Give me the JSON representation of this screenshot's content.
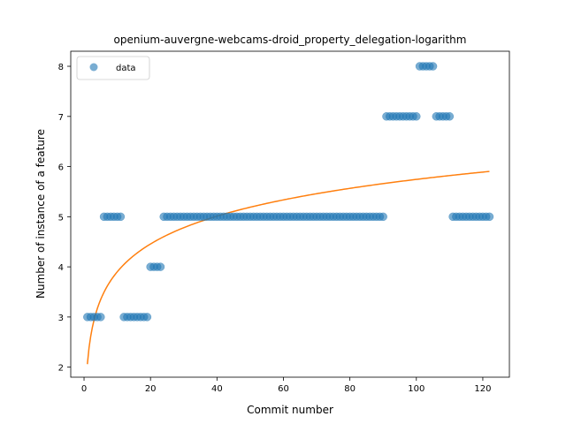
{
  "chart_data": {
    "type": "scatter",
    "title": "openium-auvergne-webcams-droid_property_delegation-logarithm",
    "xlabel": "Commit number",
    "ylabel": "Number of instance of a feature",
    "xlim": [
      -4,
      128
    ],
    "ylim": [
      1.8,
      8.3
    ],
    "xticks": [
      0,
      20,
      40,
      60,
      80,
      100,
      120
    ],
    "yticks": [
      2,
      3,
      4,
      5,
      6,
      7,
      8
    ],
    "grid": false,
    "legend": {
      "position": "top-left",
      "entries": [
        "data"
      ]
    },
    "colors": {
      "data": "#1f77b4",
      "fit": "#ff7f0e"
    },
    "series": [
      {
        "name": "data",
        "kind": "scatter",
        "points": [
          {
            "x": 1,
            "y": 3
          },
          {
            "x": 2,
            "y": 3
          },
          {
            "x": 3,
            "y": 3
          },
          {
            "x": 4,
            "y": 3
          },
          {
            "x": 5,
            "y": 3
          },
          {
            "x": 6,
            "y": 5
          },
          {
            "x": 7,
            "y": 5
          },
          {
            "x": 8,
            "y": 5
          },
          {
            "x": 9,
            "y": 5
          },
          {
            "x": 10,
            "y": 5
          },
          {
            "x": 11,
            "y": 5
          },
          {
            "x": 12,
            "y": 3
          },
          {
            "x": 13,
            "y": 3
          },
          {
            "x": 14,
            "y": 3
          },
          {
            "x": 15,
            "y": 3
          },
          {
            "x": 16,
            "y": 3
          },
          {
            "x": 17,
            "y": 3
          },
          {
            "x": 18,
            "y": 3
          },
          {
            "x": 19,
            "y": 3
          },
          {
            "x": 20,
            "y": 4
          },
          {
            "x": 21,
            "y": 4
          },
          {
            "x": 22,
            "y": 4
          },
          {
            "x": 23,
            "y": 4
          },
          {
            "x": 24,
            "y": 5
          },
          {
            "x": 25,
            "y": 5
          },
          {
            "x": 26,
            "y": 5
          },
          {
            "x": 27,
            "y": 5
          },
          {
            "x": 28,
            "y": 5
          },
          {
            "x": 29,
            "y": 5
          },
          {
            "x": 30,
            "y": 5
          },
          {
            "x": 31,
            "y": 5
          },
          {
            "x": 32,
            "y": 5
          },
          {
            "x": 33,
            "y": 5
          },
          {
            "x": 34,
            "y": 5
          },
          {
            "x": 35,
            "y": 5
          },
          {
            "x": 36,
            "y": 5
          },
          {
            "x": 37,
            "y": 5
          },
          {
            "x": 38,
            "y": 5
          },
          {
            "x": 39,
            "y": 5
          },
          {
            "x": 40,
            "y": 5
          },
          {
            "x": 41,
            "y": 5
          },
          {
            "x": 42,
            "y": 5
          },
          {
            "x": 43,
            "y": 5
          },
          {
            "x": 44,
            "y": 5
          },
          {
            "x": 45,
            "y": 5
          },
          {
            "x": 46,
            "y": 5
          },
          {
            "x": 47,
            "y": 5
          },
          {
            "x": 48,
            "y": 5
          },
          {
            "x": 49,
            "y": 5
          },
          {
            "x": 50,
            "y": 5
          },
          {
            "x": 51,
            "y": 5
          },
          {
            "x": 52,
            "y": 5
          },
          {
            "x": 53,
            "y": 5
          },
          {
            "x": 54,
            "y": 5
          },
          {
            "x": 55,
            "y": 5
          },
          {
            "x": 56,
            "y": 5
          },
          {
            "x": 57,
            "y": 5
          },
          {
            "x": 58,
            "y": 5
          },
          {
            "x": 59,
            "y": 5
          },
          {
            "x": 60,
            "y": 5
          },
          {
            "x": 61,
            "y": 5
          },
          {
            "x": 62,
            "y": 5
          },
          {
            "x": 63,
            "y": 5
          },
          {
            "x": 64,
            "y": 5
          },
          {
            "x": 65,
            "y": 5
          },
          {
            "x": 66,
            "y": 5
          },
          {
            "x": 67,
            "y": 5
          },
          {
            "x": 68,
            "y": 5
          },
          {
            "x": 69,
            "y": 5
          },
          {
            "x": 70,
            "y": 5
          },
          {
            "x": 71,
            "y": 5
          },
          {
            "x": 72,
            "y": 5
          },
          {
            "x": 73,
            "y": 5
          },
          {
            "x": 74,
            "y": 5
          },
          {
            "x": 75,
            "y": 5
          },
          {
            "x": 76,
            "y": 5
          },
          {
            "x": 77,
            "y": 5
          },
          {
            "x": 78,
            "y": 5
          },
          {
            "x": 79,
            "y": 5
          },
          {
            "x": 80,
            "y": 5
          },
          {
            "x": 81,
            "y": 5
          },
          {
            "x": 82,
            "y": 5
          },
          {
            "x": 83,
            "y": 5
          },
          {
            "x": 84,
            "y": 5
          },
          {
            "x": 85,
            "y": 5
          },
          {
            "x": 86,
            "y": 5
          },
          {
            "x": 87,
            "y": 5
          },
          {
            "x": 88,
            "y": 5
          },
          {
            "x": 89,
            "y": 5
          },
          {
            "x": 90,
            "y": 5
          },
          {
            "x": 91,
            "y": 7
          },
          {
            "x": 92,
            "y": 7
          },
          {
            "x": 93,
            "y": 7
          },
          {
            "x": 94,
            "y": 7
          },
          {
            "x": 95,
            "y": 7
          },
          {
            "x": 96,
            "y": 7
          },
          {
            "x": 97,
            "y": 7
          },
          {
            "x": 98,
            "y": 7
          },
          {
            "x": 99,
            "y": 7
          },
          {
            "x": 100,
            "y": 7
          },
          {
            "x": 101,
            "y": 8
          },
          {
            "x": 102,
            "y": 8
          },
          {
            "x": 103,
            "y": 8
          },
          {
            "x": 104,
            "y": 8
          },
          {
            "x": 105,
            "y": 8
          },
          {
            "x": 106,
            "y": 7
          },
          {
            "x": 107,
            "y": 7
          },
          {
            "x": 108,
            "y": 7
          },
          {
            "x": 109,
            "y": 7
          },
          {
            "x": 110,
            "y": 7
          },
          {
            "x": 111,
            "y": 5
          },
          {
            "x": 112,
            "y": 5
          },
          {
            "x": 113,
            "y": 5
          },
          {
            "x": 114,
            "y": 5
          },
          {
            "x": 115,
            "y": 5
          },
          {
            "x": 116,
            "y": 5
          },
          {
            "x": 117,
            "y": 5
          },
          {
            "x": 118,
            "y": 5
          },
          {
            "x": 119,
            "y": 5
          },
          {
            "x": 120,
            "y": 5
          },
          {
            "x": 121,
            "y": 5
          },
          {
            "x": 122,
            "y": 5
          }
        ]
      },
      {
        "kind": "line",
        "model": "logarithmic",
        "a": 2.06,
        "b": 0.8,
        "x_range": [
          1,
          122
        ]
      }
    ]
  }
}
